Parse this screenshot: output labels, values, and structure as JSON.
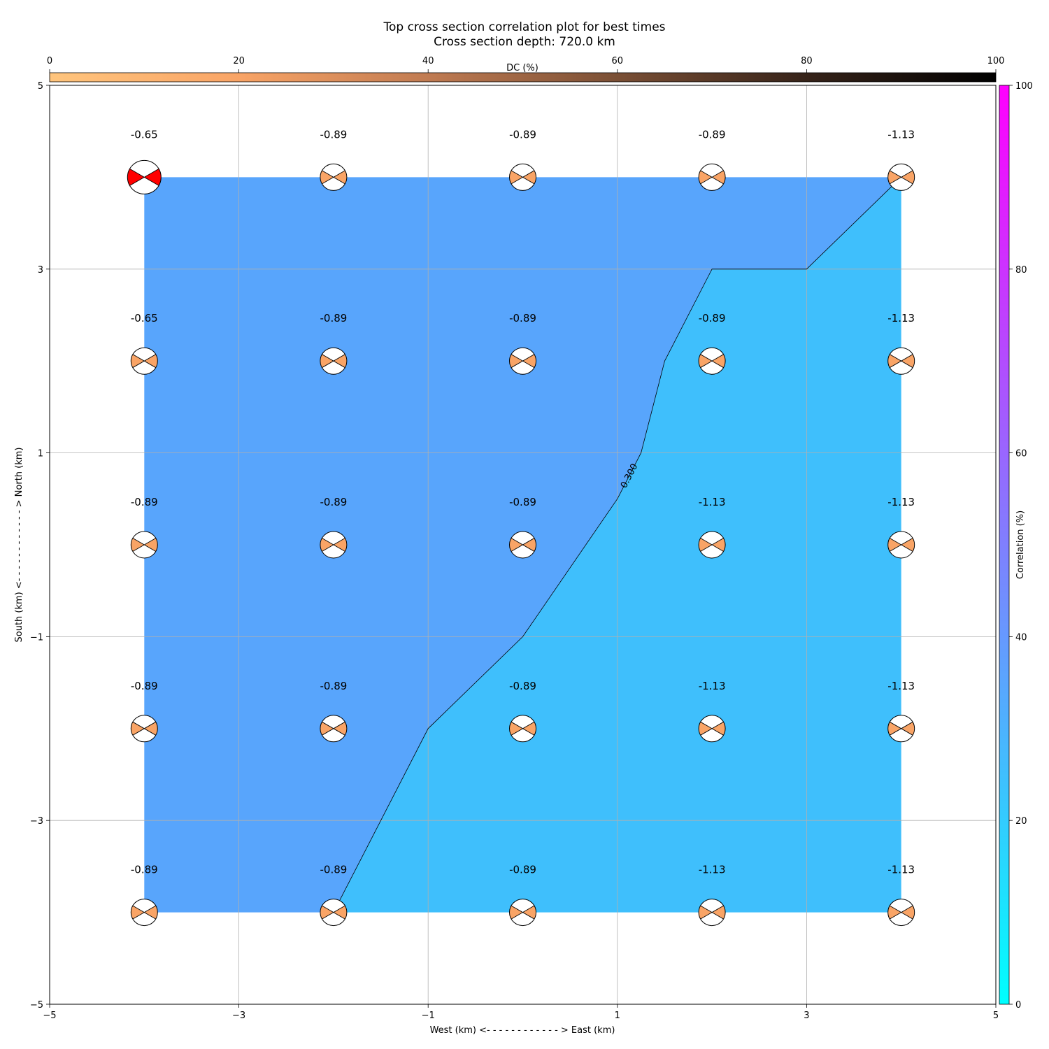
{
  "chart_data": {
    "type": "heatmap",
    "title": "Top cross section correlation plot for best times",
    "subtitle": "Cross section depth: 720.0 km",
    "xlabel": "West (km) <- - - - - - - - - - - - > East (km)",
    "ylabel": "South (km) <- - - - - - - - - - - - > North (km)",
    "xlim": [
      -5,
      5
    ],
    "ylim": [
      -5,
      5
    ],
    "xticks": [
      "−5",
      "−3",
      "−1",
      "1",
      "3",
      "5"
    ],
    "yticks": [
      "−5",
      "−3",
      "−1",
      "1",
      "3",
      "5"
    ],
    "grid": true,
    "x": [
      -4,
      -2,
      0,
      2,
      4
    ],
    "y": [
      4,
      2,
      0,
      -2,
      -4
    ],
    "labels": [
      [
        "-0.65",
        "-0.89",
        "-0.89",
        "-0.89",
        "-1.13"
      ],
      [
        "-0.65",
        "-0.89",
        "-0.89",
        "-0.89",
        "-1.13"
      ],
      [
        "-0.89",
        "-0.89",
        "-0.89",
        "-1.13",
        "-1.13"
      ],
      [
        "-0.89",
        "-0.89",
        "-0.89",
        "-1.13",
        "-1.13"
      ],
      [
        "-0.89",
        "-0.89",
        "-0.89",
        "-1.13",
        "-1.13"
      ]
    ],
    "best_point": [
      -4,
      4
    ],
    "contour_level_label": "0.300",
    "contour_path": [
      [
        -2,
        -4
      ],
      [
        -1,
        -2
      ],
      [
        0,
        -1
      ],
      [
        1,
        0.5
      ],
      [
        1.25,
        1
      ],
      [
        1.5,
        2
      ],
      [
        2,
        3
      ],
      [
        3,
        3
      ],
      [
        4,
        4
      ]
    ],
    "region_colors": {
      "above": "#58a5fc",
      "below": "#3fbffc"
    },
    "beachball_colors": {
      "best": "#ff0000",
      "other": "#f9a466",
      "pressure": "#ffffff"
    },
    "dc_colorbar": {
      "label": "DC (%)",
      "range": [
        0,
        100
      ],
      "ticks": [
        "0",
        "20",
        "40",
        "60",
        "80",
        "100"
      ],
      "colors": [
        "#ffc57d",
        "#f9a466",
        "#c07b52",
        "#7a4f35",
        "#362319",
        "#000000"
      ],
      "location": "top"
    },
    "correlation_colorbar": {
      "label": "Correlation (%)",
      "range": [
        0,
        100
      ],
      "ticks": [
        "0",
        "20",
        "40",
        "60",
        "80",
        "100"
      ],
      "colors": [
        "#00ffff",
        "#ff00ff"
      ],
      "location": "right"
    }
  }
}
